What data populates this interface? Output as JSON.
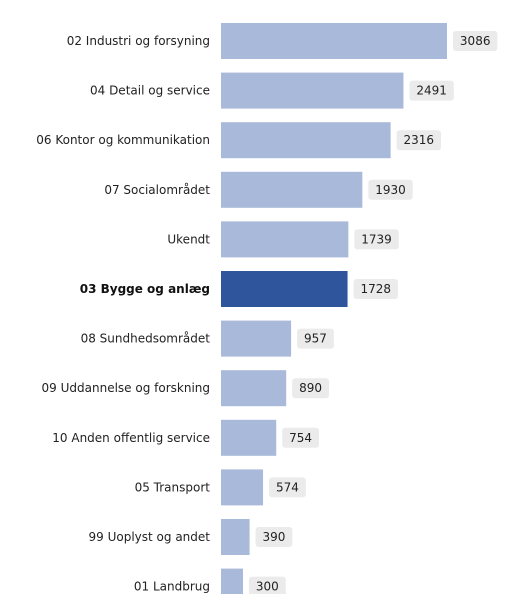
{
  "chart_data": {
    "type": "bar",
    "orientation": "horizontal",
    "categories": [
      "02 Industri og forsyning",
      "04 Detail og service",
      "06 Kontor og kommunikation",
      "07 Socialområdet",
      "Ukendt",
      "03 Bygge og anlæg",
      "08 Sundhedsområdet",
      "09 Uddannelse og forskning",
      "10 Anden offentlig service",
      "05 Transport",
      "99 Uoplyst og andet",
      "01 Landbrug"
    ],
    "values": [
      3086,
      2491,
      2316,
      1930,
      1739,
      1728,
      957,
      890,
      754,
      574,
      390,
      300
    ],
    "value_labels": [
      "3086",
      "2491",
      "2316",
      "1930",
      "1739",
      "1728",
      "957",
      "890",
      "754",
      "574",
      "390",
      "300"
    ],
    "highlight_category": "03 Bygge og anlæg",
    "title": "",
    "xlabel": "",
    "ylabel": "",
    "xlim": [
      0,
      3086
    ],
    "grid": false,
    "legend": "none",
    "colors": {
      "bar": "#a9b9d9",
      "highlight": "#2f569c",
      "label_box": "#ebebeb",
      "text": "#222222"
    }
  }
}
